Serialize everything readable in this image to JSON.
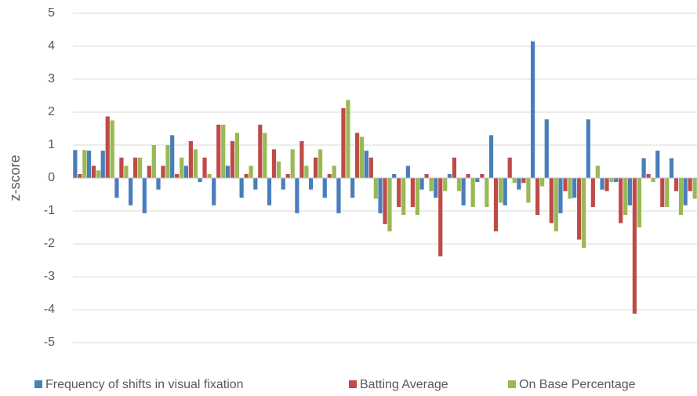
{
  "chart_data": {
    "type": "bar",
    "ylabel": "z-score",
    "categories": [
      null,
      null,
      null,
      null,
      null,
      null,
      null,
      null,
      null,
      null,
      null,
      null,
      null,
      null,
      null,
      null,
      null,
      null,
      null,
      null,
      null,
      null,
      null,
      null,
      null,
      null,
      null,
      null,
      null,
      null,
      null,
      null,
      null,
      null,
      null,
      null,
      null,
      null,
      null,
      null,
      null,
      null,
      null,
      null,
      null
    ],
    "series": [
      {
        "name": "Frequency of shifts in visual fixation",
        "color": "#4a7ebb",
        "values": [
          0.85,
          0.83,
          0.83,
          -0.6,
          -0.83,
          -1.07,
          -0.35,
          1.3,
          0.37,
          -0.12,
          -0.83,
          0.37,
          -0.6,
          -0.35,
          -0.83,
          -0.35,
          -1.07,
          -0.35,
          -0.6,
          -1.07,
          -0.6,
          0.83,
          -1.07,
          0.12,
          0.37,
          -0.35,
          -0.6,
          0.12,
          -0.83,
          -0.12,
          1.3,
          -0.83,
          -0.35,
          4.15,
          1.78,
          -1.07,
          -0.6,
          1.78,
          -0.35,
          -0.12,
          -0.83,
          0.6,
          0.83,
          0.6,
          -0.83
        ]
      },
      {
        "name": "Batting Average",
        "color": "#be4b48",
        "values": [
          0.12,
          0.37,
          1.87,
          0.62,
          0.62,
          0.37,
          0.37,
          0.12,
          1.12,
          0.62,
          1.62,
          1.12,
          0.12,
          1.62,
          0.87,
          0.12,
          1.12,
          0.62,
          0.12,
          2.12,
          1.37,
          0.62,
          -1.4,
          -0.88,
          -0.88,
          0.12,
          -2.38,
          0.62,
          0.12,
          0.12,
          -1.62,
          0.62,
          -0.15,
          -1.12,
          -1.37,
          -0.4,
          -1.87,
          -0.88,
          -0.4,
          -1.37,
          -4.12,
          0.12,
          -0.88,
          -0.4,
          -0.4
        ]
      },
      {
        "name": "On Base Percentage",
        "color": "#98b954",
        "values": [
          0.85,
          0.23,
          1.75,
          0.37,
          0.62,
          1.0,
          1.0,
          0.62,
          0.87,
          0.12,
          1.62,
          1.37,
          0.37,
          1.37,
          0.5,
          0.87,
          0.37,
          0.87,
          0.37,
          2.37,
          1.25,
          -0.63,
          -1.62,
          -1.12,
          -1.12,
          -0.4,
          -0.4,
          -0.4,
          -0.88,
          -0.88,
          -0.75,
          -0.15,
          -0.75,
          -0.25,
          -1.62,
          -0.63,
          -2.12,
          0.37,
          -0.12,
          -1.12,
          -1.5,
          -0.12,
          -0.88,
          -1.12,
          -0.63
        ]
      }
    ],
    "ylim": [
      -5.25,
      5.25
    ],
    "yticks": [
      -5,
      -4,
      -3,
      -2,
      -1,
      0,
      1,
      2,
      3,
      4,
      5
    ],
    "grid": true,
    "legend": "bottom"
  }
}
